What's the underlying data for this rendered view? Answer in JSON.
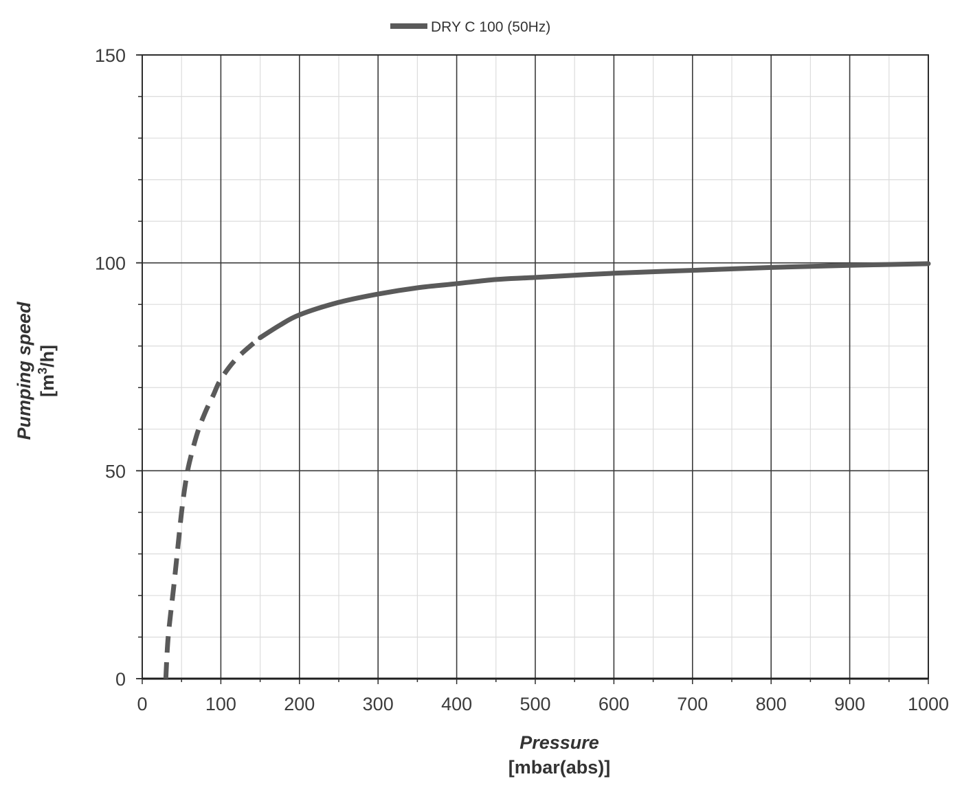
{
  "chart_data": {
    "type": "line",
    "title": "",
    "x_axis": {
      "label": "Pressure",
      "unit": "[mbar(abs)]",
      "range": [
        0,
        1000
      ],
      "major_ticks": [
        0,
        100,
        200,
        300,
        400,
        500,
        600,
        700,
        800,
        900,
        1000
      ],
      "minor_step": 50
    },
    "y_axis": {
      "label": "Pumping speed",
      "unit_prefix": "[m",
      "unit_superscript": "3",
      "unit_suffix": "/h]",
      "range": [
        0,
        150
      ],
      "major_ticks": [
        0,
        50,
        100,
        150
      ],
      "minor_step": 10
    },
    "grid": true,
    "legend": {
      "placement": "top-center",
      "entries": [
        "DRY C 100 (50Hz)"
      ]
    },
    "series": [
      {
        "name": "DRY C 100 (50Hz)",
        "color": "#5a5a5a",
        "dashed_segment": {
          "x": [
            30,
            33,
            40,
            45,
            50,
            55,
            60,
            70,
            80,
            90,
            100,
            120,
            150
          ],
          "y": [
            0,
            10,
            22,
            31,
            40,
            47,
            52,
            59,
            64,
            68,
            72,
            77,
            82
          ]
        },
        "solid_segment": {
          "x": [
            150,
            175,
            200,
            250,
            300,
            350,
            400,
            450,
            500,
            600,
            700,
            800,
            900,
            1000
          ],
          "y": [
            82,
            85,
            87.5,
            90.5,
            92.5,
            94,
            95,
            96,
            96.5,
            97.5,
            98.2,
            98.9,
            99.4,
            99.8
          ]
        }
      }
    ]
  }
}
